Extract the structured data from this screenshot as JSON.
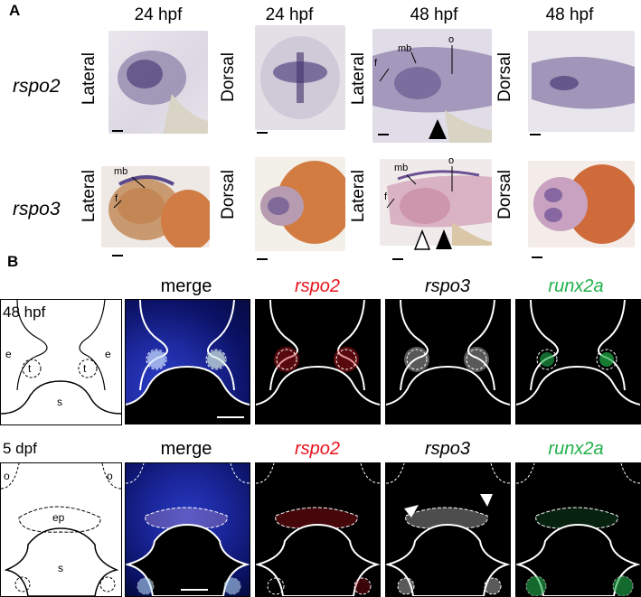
{
  "panel_a": {
    "letter": "A",
    "columns": [
      "24 hpf",
      "24 hpf",
      "48 hpf",
      "48 hpf"
    ],
    "rows": [
      {
        "gene": "rspo2",
        "views": [
          "Lateral",
          "Dorsal",
          "Lateral",
          "Dorsal"
        ]
      },
      {
        "gene": "rspo3",
        "views": [
          "Lateral",
          "Dorsal",
          "Lateral",
          "Dorsal"
        ]
      }
    ],
    "annotations": {
      "mb": "mb",
      "f": "f",
      "o": "o"
    }
  },
  "panel_b": {
    "letter": "B",
    "headers": [
      "merge",
      "rspo2",
      "rspo3",
      "runx2a"
    ],
    "header_colors": {
      "rspo2": "#e8121c",
      "rspo3": "#000000",
      "runx2a": "#22b14c"
    },
    "row1": {
      "stage": "48 hpf",
      "labels": {
        "e": "e",
        "t": "t",
        "s": "s"
      }
    },
    "row2": {
      "stage": "5 dpf",
      "labels": {
        "o": "o",
        "ep": "ep",
        "s": "s"
      }
    }
  }
}
